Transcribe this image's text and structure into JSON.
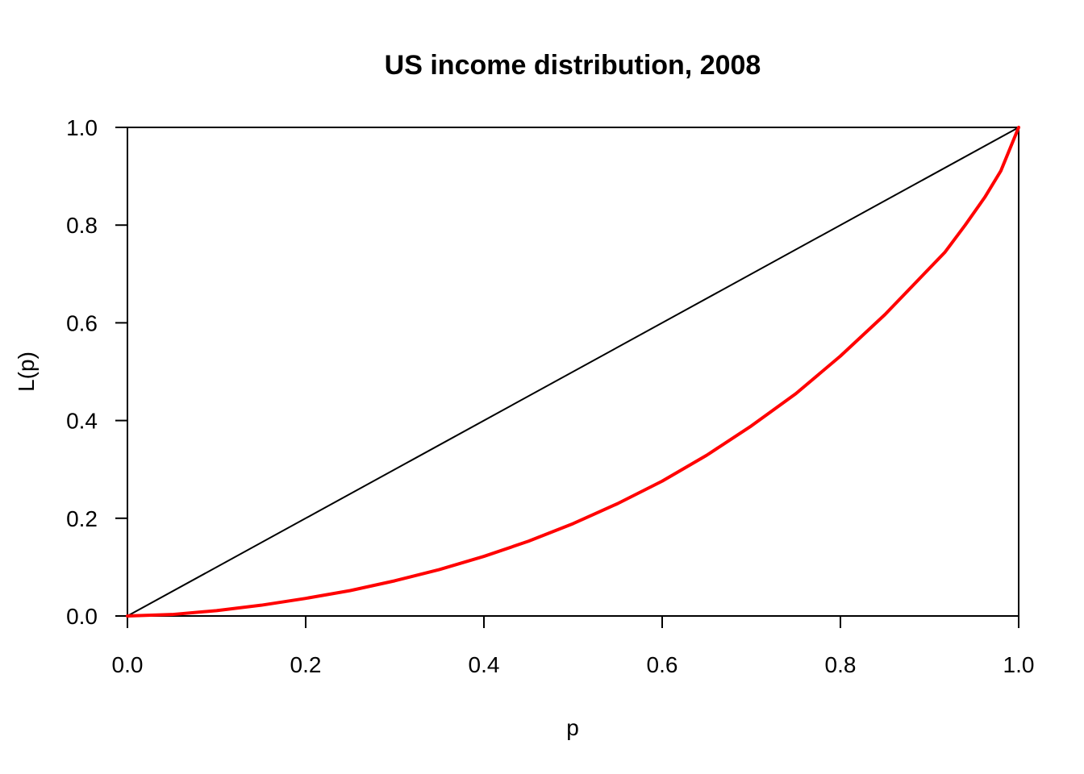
{
  "chart_data": {
    "type": "line",
    "title": "US income distribution, 2008",
    "xlabel": "p",
    "ylabel": "L(p)",
    "xlim": [
      0,
      1
    ],
    "ylim": [
      0,
      1
    ],
    "grid": false,
    "x_ticks": [
      0.0,
      0.2,
      0.4,
      0.6,
      0.8,
      1.0
    ],
    "y_ticks": [
      0.0,
      0.2,
      0.4,
      0.6,
      0.8,
      1.0
    ],
    "x_tick_labels": [
      "0.0",
      "0.2",
      "0.4",
      "0.6",
      "0.8",
      "1.0"
    ],
    "y_tick_labels": [
      "0.0",
      "0.2",
      "0.4",
      "0.6",
      "0.8",
      "1.0"
    ],
    "series": [
      {
        "color": "#000000",
        "x": [
          0,
          1
        ],
        "y": [
          0,
          1
        ]
      },
      {
        "color": "#ff0000",
        "x": [
          0.0,
          0.05,
          0.1,
          0.15,
          0.2,
          0.25,
          0.3,
          0.35,
          0.4,
          0.45,
          0.5,
          0.55,
          0.6,
          0.65,
          0.7,
          0.75,
          0.8,
          0.85,
          0.917,
          0.94,
          0.962,
          0.98,
          1.0
        ],
        "y": [
          0.0,
          0.003,
          0.011,
          0.022,
          0.036,
          0.052,
          0.072,
          0.095,
          0.122,
          0.153,
          0.189,
          0.23,
          0.276,
          0.329,
          0.389,
          0.455,
          0.532,
          0.617,
          0.744,
          0.8,
          0.857,
          0.911,
          1.0
        ]
      }
    ]
  }
}
